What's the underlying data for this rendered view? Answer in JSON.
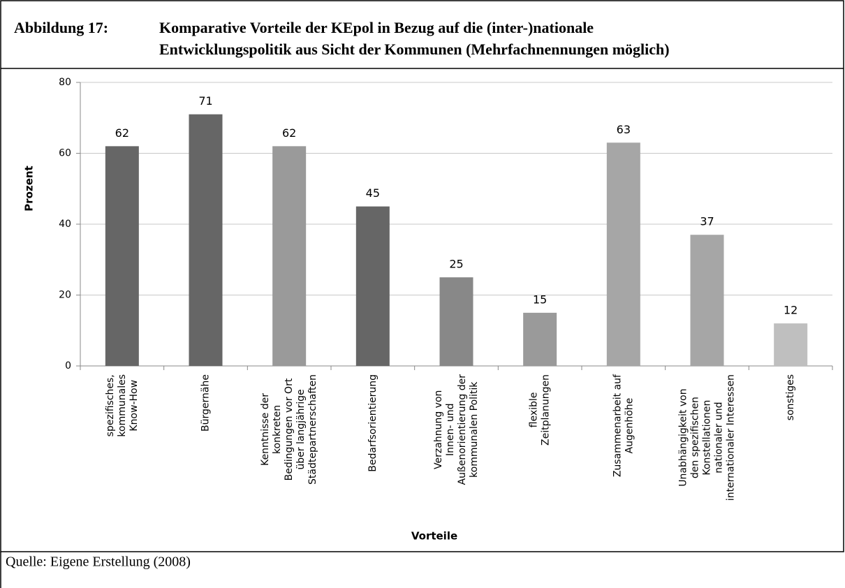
{
  "figure_label": "Abbildung 17:",
  "source": "Quelle: Eigene Erstellung (2008)",
  "chart_data": {
    "type": "bar",
    "title": [
      "Komparative Vorteile der KEpol in Bezug auf die (inter-)nationale",
      "Entwicklungspolitik aus Sicht der Kommunen (Mehrfachnennungen möglich)"
    ],
    "x_label": "Vorteile",
    "y_label": "Prozent",
    "categories": [
      "spezifisches,\nkommunales\nKnow-How",
      "Bürgernähe",
      "Kenntnisse der\nkonkreten\nBedingungen vor Ort\nüber langjährige\nStädtepartnerschaften",
      "Bedarfsorientierung",
      "Verzahnung von\nInnen- und\nAußenorientierung der\nkommunalen Politik",
      "flexible\nZeitplanungen",
      "Zusammenarbeit auf\nAugenhöhe",
      "Unabhängigkeit von\nden spezifischen\nKonstellationen\nnationaler und\ninternationaler Interessen",
      "sonstiges"
    ],
    "values": [
      62,
      71,
      62,
      45,
      25,
      15,
      63,
      37,
      12
    ],
    "colors": [
      "#666666",
      "#666666",
      "#9a9a9a",
      "#666666",
      "#888888",
      "#9a9a9a",
      "#a6a6a6",
      "#a6a6a6",
      "#bfbfbf"
    ],
    "ylim": [
      0,
      80
    ],
    "yticks": [
      0,
      20,
      40,
      60,
      80
    ],
    "grid": true
  }
}
